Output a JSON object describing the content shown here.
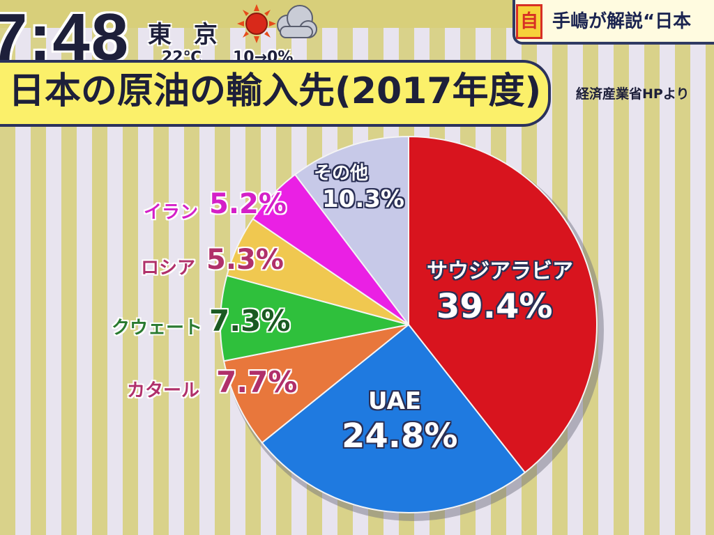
{
  "broadcast": {
    "clock": "7:48",
    "city": "東 京",
    "temperature": "22℃",
    "rain_chance": "10→0%",
    "weather_icons": [
      "sun-icon",
      "cloud-icon"
    ],
    "corner_badge": "自",
    "corner_text": "手嶋が解説“日本"
  },
  "title": "日本の原油の輸入先(2017年度)",
  "source": "経済産業省HPより",
  "colors": {
    "saudi": "#d8141e",
    "uae": "#1f7ae0",
    "qatar": "#e8773c",
    "kuwait": "#2fc03c",
    "russia": "#f0c850",
    "iran": "#ea20e4",
    "other": "#c7c9e8",
    "title_bg": "#fbf06a",
    "navy": "#2b325c"
  },
  "chart_data": {
    "type": "pie",
    "title": "日本の原油の輸入先(2017年度)",
    "slices": [
      {
        "key": "saudi",
        "label": "サウジアラビア",
        "value": 39.4,
        "value_label": "39.4%"
      },
      {
        "key": "uae",
        "label": "UAE",
        "value": 24.8,
        "value_label": "24.8%"
      },
      {
        "key": "qatar",
        "label": "カタール",
        "value": 7.7,
        "value_label": "7.7%"
      },
      {
        "key": "kuwait",
        "label": "クウェート",
        "value": 7.3,
        "value_label": "7.3%"
      },
      {
        "key": "russia",
        "label": "ロシア",
        "value": 5.3,
        "value_label": "5.3%"
      },
      {
        "key": "iran",
        "label": "イラン",
        "value": 5.2,
        "value_label": "5.2%"
      },
      {
        "key": "other",
        "label": "その他",
        "value": 10.3,
        "value_label": "10.3%"
      }
    ]
  }
}
